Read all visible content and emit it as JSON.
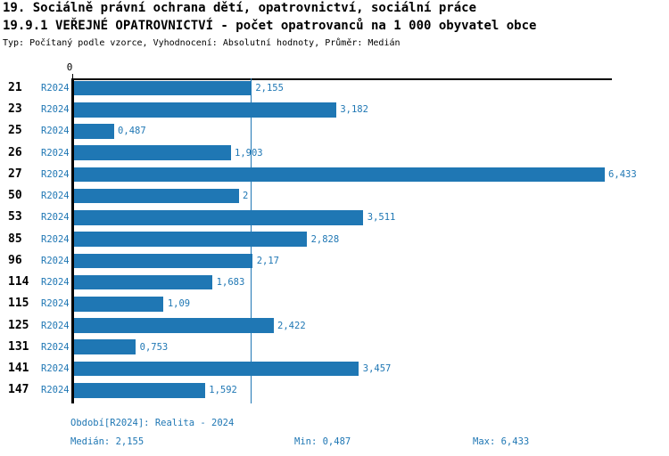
{
  "header": {
    "title_line1": "19. Sociálně právní ochrana dětí, opatrovnictví, sociální práce",
    "title_line2": "19.9.1 VEŘEJNÉ OPATROVNICTVÍ - počet opatrovanců na 1 000 obyvatel obce",
    "subtitle": "Typ: Počítaný podle vzorce, Vyhodnocení: Absolutní hodnoty, Průměr: Medián"
  },
  "axis": {
    "zero_label": "0"
  },
  "chart_data": {
    "type": "bar",
    "orientation": "horizontal",
    "title": "19.9.1 VEŘEJNÉ OPATROVNICTVÍ - počet opatrovanců na 1 000 obyvatel obce",
    "series_name": "R2024",
    "categories": [
      "21",
      "23",
      "25",
      "26",
      "27",
      "50",
      "53",
      "85",
      "96",
      "114",
      "115",
      "125",
      "131",
      "141",
      "147"
    ],
    "values": [
      2.155,
      3.182,
      0.487,
      1.903,
      6.433,
      2,
      3.511,
      2.828,
      2.17,
      1.683,
      1.09,
      2.422,
      0.753,
      3.457,
      1.592
    ],
    "value_labels": [
      "2,155",
      "3,182",
      "0,487",
      "1,903",
      "6,433",
      "2",
      "3,511",
      "2,828",
      "2,17",
      "1,683",
      "1,09",
      "2,422",
      "0,753",
      "3,457",
      "1,592"
    ],
    "xlim": [
      0,
      6.5
    ],
    "median_value": 2.155,
    "grid": false,
    "legend": "none",
    "bar_color": "#1f77b4",
    "median_line_color": "#1f77b4",
    "axis_color": "#000000",
    "label_color": "#1f77b4"
  },
  "footer": {
    "period_label": "Období[R2024]: Realita - 2024",
    "median_label": "Medián: 2,155",
    "min_label": "Min: 0,487",
    "max_label": "Max: 6,433"
  }
}
